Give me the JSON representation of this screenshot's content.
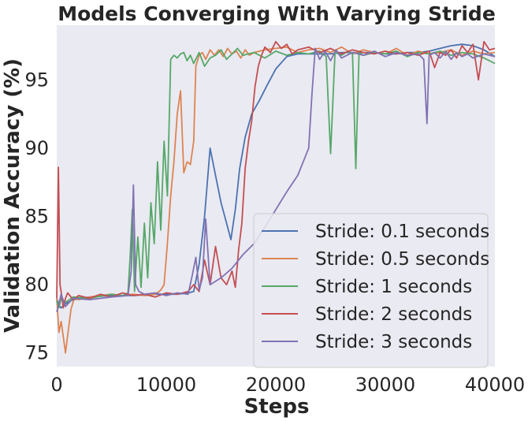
{
  "chart_data": {
    "type": "line",
    "title": "Models Converging With Varying Stride",
    "xlabel": "Steps",
    "ylabel": "Validation Accuracy (%)",
    "xlim": [
      0,
      40000
    ],
    "ylim": [
      74,
      99
    ],
    "xticks": [
      0,
      10000,
      20000,
      30000,
      40000
    ],
    "yticks": [
      75,
      80,
      85,
      90,
      95
    ],
    "grid": false,
    "background": "#EAEAF2",
    "legend_position": "bottom-right",
    "series": [
      {
        "name": "Stride: 0.1 seconds",
        "color": "#4C72B0",
        "x": [
          0,
          200,
          400,
          800,
          1500,
          3000,
          5000,
          7000,
          9000,
          11000,
          12000,
          12500,
          13000,
          13500,
          14000,
          14500,
          15000,
          15500,
          15900,
          16300,
          16700,
          17200,
          17800,
          18500,
          19200,
          20000,
          21000,
          22000,
          23000,
          24000,
          25000,
          26000,
          27000,
          28000,
          29000,
          30000,
          31000,
          32000,
          33000,
          34000,
          35000,
          36000,
          37000,
          38000,
          39000,
          40000
        ],
        "y": [
          79.0,
          78.5,
          78.3,
          78.6,
          78.9,
          79.1,
          79.2,
          79.2,
          79.3,
          79.3,
          79.4,
          79.5,
          81.5,
          85.0,
          90.0,
          88.0,
          86.0,
          84.5,
          83.3,
          85.5,
          88.5,
          90.8,
          92.5,
          93.5,
          94.6,
          95.8,
          96.7,
          96.9,
          96.9,
          96.9,
          96.9,
          97.0,
          97.0,
          97.0,
          97.0,
          96.9,
          96.9,
          97.0,
          97.0,
          97.1,
          97.3,
          97.5,
          97.6,
          97.5,
          97.2,
          96.7
        ]
      },
      {
        "name": "Stride: 0.5 seconds",
        "color": "#DD8452",
        "x": [
          0,
          200,
          400,
          600,
          800,
          1000,
          1300,
          1600,
          2000,
          3000,
          4000,
          5000,
          6000,
          7000,
          8000,
          9000,
          9500,
          9800,
          10100,
          10400,
          10700,
          11000,
          11300,
          11600,
          11900,
          12200,
          12500,
          12700,
          13000,
          13300,
          13600,
          14000,
          14400,
          14800,
          15200,
          15600,
          16000,
          16400,
          16800,
          17200,
          17600,
          18000,
          19000,
          20000,
          21000,
          22000,
          23000,
          24000,
          25000,
          26000,
          27000,
          28000,
          29000,
          30000,
          31000,
          32000,
          33000,
          34000,
          35000,
          36000,
          37000,
          38000,
          39000,
          40000
        ],
        "y": [
          79.0,
          76.5,
          77.3,
          76.2,
          75.0,
          76.3,
          78.2,
          79.0,
          78.9,
          79.1,
          79.2,
          79.3,
          79.2,
          79.3,
          79.2,
          79.3,
          79.6,
          80.0,
          83.0,
          86.5,
          89.0,
          92.5,
          94.2,
          88.2,
          89.0,
          88.8,
          90.5,
          96.0,
          96.8,
          97.0,
          96.5,
          97.2,
          96.8,
          97.2,
          96.7,
          97.3,
          96.9,
          97.1,
          96.6,
          97.2,
          96.8,
          97.0,
          97.2,
          97.3,
          97.4,
          97.0,
          97.2,
          97.3,
          97.0,
          97.4,
          96.9,
          97.2,
          97.0,
          96.9,
          97.3,
          96.8,
          97.1,
          96.9,
          97.0,
          97.2,
          96.8,
          97.1,
          96.9,
          97.0
        ]
      },
      {
        "name": "Stride: 1 seconds",
        "color": "#55A868",
        "x": [
          0,
          200,
          400,
          800,
          1500,
          3000,
          5000,
          6000,
          6500,
          6700,
          6900,
          7100,
          7400,
          7700,
          8000,
          8300,
          8600,
          8900,
          9200,
          9500,
          9800,
          10100,
          10400,
          10700,
          11000,
          11300,
          11600,
          11900,
          12200,
          12500,
          13000,
          13500,
          14000,
          14500,
          15000,
          15500,
          16000,
          16500,
          17000,
          18000,
          19000,
          20000,
          21000,
          22000,
          23000,
          24000,
          24600,
          25000,
          25400,
          26000,
          26600,
          27000,
          27300,
          27600,
          28000,
          29000,
          30000,
          31000,
          32000,
          33000,
          34000,
          35000,
          36000,
          37000,
          38000,
          39000,
          40000
        ],
        "y": [
          78.8,
          78.3,
          79.0,
          78.7,
          79.1,
          79.0,
          79.3,
          79.2,
          79.4,
          82.0,
          85.5,
          79.5,
          83.5,
          79.8,
          84.5,
          80.5,
          86.0,
          83.0,
          89.0,
          84.0,
          90.5,
          86.5,
          96.5,
          96.8,
          96.6,
          96.9,
          97.0,
          96.4,
          96.8,
          96.2,
          97.0,
          96.0,
          96.6,
          96.8,
          97.2,
          96.5,
          96.9,
          97.3,
          96.8,
          97.0,
          96.6,
          97.1,
          96.8,
          97.0,
          96.9,
          97.1,
          96.7,
          89.6,
          97.0,
          96.8,
          97.1,
          96.9,
          88.5,
          97.0,
          96.8,
          97.0,
          96.9,
          97.1,
          96.7,
          97.0,
          96.9,
          97.1,
          96.8,
          97.0,
          96.9,
          96.6,
          96.2
        ]
      },
      {
        "name": "Stride: 2 seconds",
        "color": "#C44E52",
        "x": [
          0,
          150,
          300,
          450,
          600,
          800,
          1000,
          1500,
          2000,
          3000,
          4000,
          5000,
          6000,
          7000,
          8000,
          9000,
          10000,
          11000,
          12000,
          12500,
          13000,
          13500,
          14000,
          14500,
          15000,
          15500,
          16000,
          16300,
          16600,
          16900,
          17200,
          17500,
          17800,
          18100,
          18400,
          18700,
          19000,
          19500,
          20000,
          20500,
          21000,
          21500,
          22000,
          23000,
          24000,
          25000,
          26000,
          27000,
          28000,
          29000,
          30000,
          31000,
          32000,
          33000,
          34000,
          34500,
          35000,
          35500,
          36000,
          36500,
          37000,
          37500,
          38000,
          38500,
          39000,
          39500,
          40000
        ],
        "y": [
          79.0,
          88.6,
          80.0,
          79.2,
          78.3,
          79.0,
          79.4,
          78.9,
          79.2,
          79.0,
          79.3,
          79.1,
          79.4,
          79.2,
          79.3,
          79.1,
          79.4,
          79.3,
          79.5,
          80.0,
          79.5,
          81.8,
          80.0,
          82.8,
          80.5,
          80.0,
          81.0,
          79.8,
          82.5,
          84.5,
          88.5,
          90.5,
          92.0,
          94.5,
          96.0,
          96.8,
          97.4,
          97.0,
          97.8,
          97.3,
          97.6,
          96.9,
          97.2,
          97.4,
          97.0,
          97.3,
          96.9,
          97.2,
          97.0,
          96.9,
          97.1,
          96.9,
          97.0,
          96.8,
          97.1,
          95.9,
          97.0,
          96.8,
          97.2,
          96.6,
          97.5,
          97.0,
          97.6,
          95.0,
          97.8,
          97.2,
          97.3
        ]
      },
      {
        "name": "Stride: 3 seconds",
        "color": "#8172B2",
        "x": [
          0,
          200,
          400,
          800,
          1500,
          3000,
          5000,
          6500,
          6800,
          7000,
          7200,
          7500,
          8000,
          9000,
          10000,
          11000,
          12000,
          12400,
          12700,
          13000,
          13300,
          13600,
          14000,
          15000,
          16000,
          17000,
          18000,
          19000,
          20000,
          21000,
          22000,
          22500,
          23000,
          23300,
          23600,
          24000,
          24500,
          25000,
          25500,
          26000,
          27000,
          28000,
          29000,
          30000,
          31000,
          32000,
          33000,
          33500,
          33800,
          34000,
          34500,
          35000,
          35500,
          36000,
          36500,
          37000,
          37500,
          38000,
          39000,
          40000
        ],
        "y": [
          78.0,
          78.6,
          79.3,
          78.4,
          79.0,
          78.9,
          79.1,
          79.2,
          81.0,
          87.3,
          80.0,
          79.5,
          79.3,
          79.4,
          79.2,
          79.4,
          79.3,
          80.8,
          82.0,
          79.6,
          80.5,
          84.8,
          80.0,
          80.5,
          81.2,
          82.2,
          83.0,
          84.2,
          85.5,
          86.8,
          88.0,
          89.0,
          90.0,
          94.0,
          97.3,
          96.5,
          97.1,
          96.4,
          97.2,
          96.6,
          97.0,
          96.8,
          97.1,
          96.7,
          97.0,
          96.8,
          96.9,
          96.5,
          91.8,
          96.8,
          97.0,
          96.6,
          97.1,
          96.5,
          97.0,
          96.7,
          96.9,
          96.6,
          96.9,
          96.7
        ]
      }
    ]
  }
}
